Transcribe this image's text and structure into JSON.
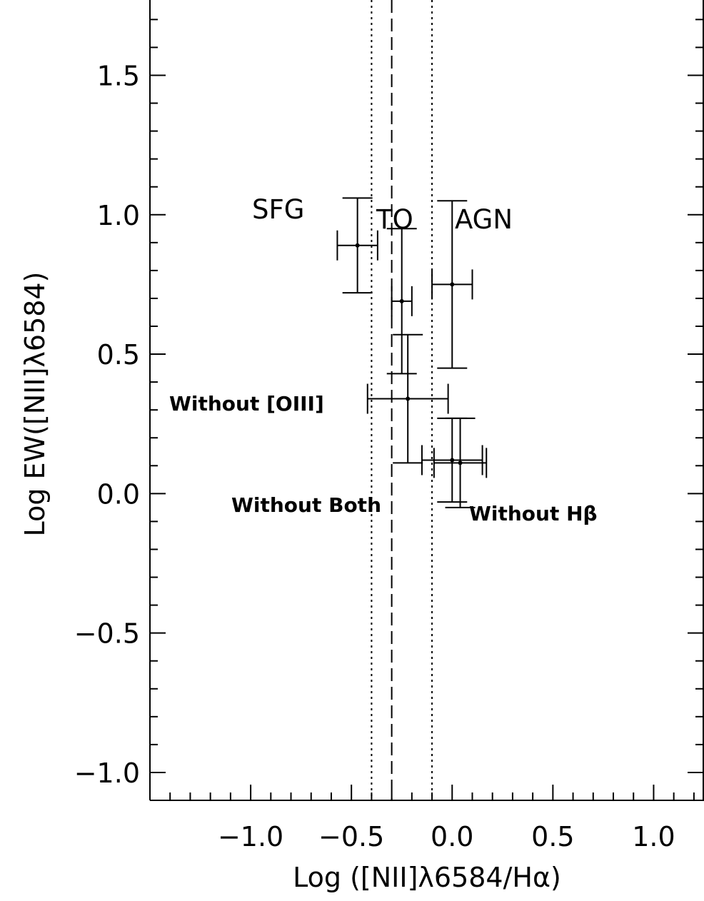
{
  "chart_data": {
    "type": "scatter",
    "xlabel": "Log ([NII]λ6584/Hα)",
    "ylabel": "Log EW([NII]λ6584)",
    "xlim": [
      -1.5,
      1.25
    ],
    "ylim": [
      -1.1,
      1.77
    ],
    "x_ticks": [
      -1.0,
      -0.5,
      0.0,
      0.5,
      1.0
    ],
    "x_tick_labels": [
      "−1.0",
      "−0.5",
      "0.0",
      "0.5",
      "1.0"
    ],
    "y_ticks": [
      -1.0,
      -0.5,
      0.0,
      0.5,
      1.0,
      1.5
    ],
    "y_tick_labels": [
      "−1.0",
      "−0.5",
      "0.0",
      "0.5",
      "1.0",
      "1.5"
    ],
    "grid": false,
    "points": [
      {
        "x": -0.47,
        "y": 0.89,
        "xerr": 0.1,
        "yerr": 0.17
      },
      {
        "x": -0.25,
        "y": 0.69,
        "xerr": 0.05,
        "yerr": 0.26
      },
      {
        "x": 0.0,
        "y": 0.75,
        "xerr": 0.1,
        "yerr": 0.3
      },
      {
        "x": -0.22,
        "y": 0.34,
        "xerr": 0.2,
        "yerr": 0.23
      },
      {
        "x": 0.0,
        "y": 0.12,
        "xerr": 0.15,
        "yerr": 0.15
      },
      {
        "x": 0.04,
        "y": 0.11,
        "xerr": 0.13,
        "yerr": 0.16
      }
    ],
    "vertical_lines": [
      {
        "x": -0.4,
        "style": "dotted"
      },
      {
        "x": -0.3,
        "style": "dashed"
      },
      {
        "x": -0.1,
        "style": "dotted"
      }
    ],
    "annotations": {
      "sfg": "SFG",
      "to": "TO",
      "agn": "AGN",
      "without_oiii": "Without [OIII]",
      "without_both": "Without Both",
      "without_hbeta": "Without Hβ"
    }
  }
}
